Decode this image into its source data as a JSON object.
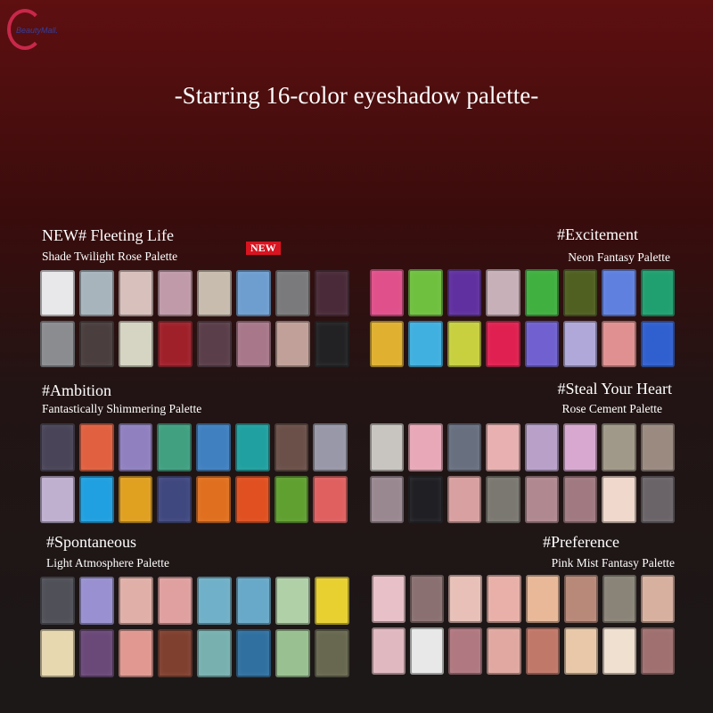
{
  "logo": {
    "text": "BeautyMall."
  },
  "title": "-Starring 16-color eyeshadow palette-",
  "badge": "NEW",
  "palettes": [
    {
      "heading": "NEW# Fleeting Life",
      "subtitle": "Shade Twilight Rose Palette",
      "colors": [
        "#e8e8ea",
        "#a8b4bc",
        "#d8c0bc",
        "#c09aa8",
        "#c8bcae",
        "#6e9ed0",
        "#7a7a7c",
        "#4a2a38",
        "#8a8c90",
        "#4a3e3e",
        "#d6d4c2",
        "#a0202a",
        "#5a3e4a",
        "#a8788a",
        "#c0a098",
        "#222224"
      ]
    },
    {
      "heading": "#Excitement",
      "subtitle": "Neon Fantasy Palette",
      "colors": [
        "#e0508a",
        "#70c040",
        "#6030a0",
        "#c8b0b8",
        "#40b040",
        "#506020",
        "#6080e0",
        "#20a070",
        "#e0b030",
        "#40b0e0",
        "#c8d040",
        "#e02050",
        "#7060d0",
        "#b0a8d8",
        "#e09090",
        "#3060d0"
      ]
    },
    {
      "heading": "#Ambition",
      "subtitle": "Fantastically Shimmering Palette",
      "colors": [
        "#4a4458",
        "#e06040",
        "#9080c0",
        "#40a080",
        "#4080c0",
        "#20a0a0",
        "#6a5048",
        "#9898a8",
        "#c0b0d0",
        "#20a0e0",
        "#e0a020",
        "#404880",
        "#e07020",
        "#e05020",
        "#60a030",
        "#e06060"
      ]
    },
    {
      "heading": "#Steal Your Heart",
      "subtitle": "Rose Cement Palette",
      "colors": [
        "#c8c4c0",
        "#e8a8b8",
        "#687080",
        "#e8b0b0",
        "#b8a0c8",
        "#d8a8d0",
        "#a09888",
        "#9a8a80",
        "#9a8890",
        "#202024",
        "#d8a0a0",
        "#7a7870",
        "#b08890",
        "#a07a80",
        "#f0d8cc",
        "#6a6468"
      ]
    },
    {
      "heading": "#Spontaneous",
      "subtitle": "Light Atmosphere Palette",
      "colors": [
        "#505058",
        "#9890d0",
        "#e0b0a8",
        "#e0a0a0",
        "#70b0c8",
        "#68a8c8",
        "#b0d0a8",
        "#e8d030",
        "#e8d8b0",
        "#6a4878",
        "#e09890",
        "#804030",
        "#78b0b0",
        "#3070a0",
        "#98c090",
        "#686850"
      ]
    },
    {
      "heading": "#Preference",
      "subtitle": "Pink Mist Fantasy Palette",
      "colors": [
        "#e8c0c8",
        "#8a7070",
        "#e8c0b8",
        "#e8b0a8",
        "#e8b898",
        "#b88878",
        "#8a8478",
        "#d8b0a0",
        "#e0b8c0",
        "#e8e8e8",
        "#b07880",
        "#e0a8a0",
        "#c07868",
        "#e8c8a8",
        "#f0e0d0",
        "#a07070"
      ]
    }
  ]
}
